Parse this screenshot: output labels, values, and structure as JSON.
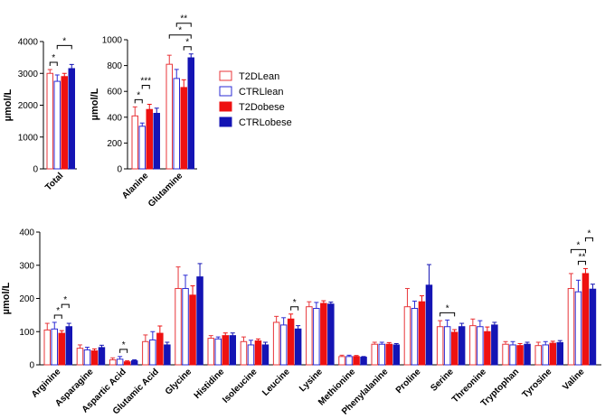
{
  "legend": {
    "position": "right",
    "items": [
      {
        "name": "T2DLean",
        "color": "#e8363a",
        "filled": false
      },
      {
        "name": "CTRLlean",
        "color": "#2b2bd4",
        "filled": false
      },
      {
        "name": "T2Dobese",
        "color": "#ee1111",
        "filled": true
      },
      {
        "name": "CTRLobese",
        "color": "#1414b4",
        "filled": true
      }
    ]
  },
  "chart_data": [
    {
      "type": "bar",
      "panel": "total",
      "ylabel": "µmol/L",
      "ylim": [
        0,
        4000
      ],
      "yticks": [
        0,
        1000,
        2000,
        3000,
        4000
      ],
      "grid": false,
      "categories": [
        "Total"
      ],
      "series": [
        {
          "name": "T2DLean",
          "values": [
            3000
          ],
          "errors": [
            120
          ]
        },
        {
          "name": "CTRLlean",
          "values": [
            2750
          ],
          "errors": [
            200
          ]
        },
        {
          "name": "T2Dobese",
          "values": [
            2900
          ],
          "errors": [
            100
          ]
        },
        {
          "name": "CTRLobese",
          "values": [
            3150
          ],
          "errors": [
            130
          ]
        }
      ],
      "significance": [
        {
          "category": "Total",
          "from": 0,
          "to": 1,
          "label": "*"
        },
        {
          "category": "Total",
          "from": 1,
          "to": 3,
          "label": "*"
        }
      ]
    },
    {
      "type": "bar",
      "panel": "alanine-glutamine",
      "ylabel": "µmol/L",
      "ylim": [
        0,
        1000
      ],
      "yticks": [
        0,
        200,
        400,
        600,
        800,
        1000
      ],
      "grid": false,
      "categories": [
        "Alanine",
        "Glutamine"
      ],
      "series": [
        {
          "name": "T2DLean",
          "values": [
            410,
            810
          ],
          "errors": [
            70,
            70
          ]
        },
        {
          "name": "CTRLlean",
          "values": [
            330,
            700
          ],
          "errors": [
            25,
            70
          ]
        },
        {
          "name": "T2Dobese",
          "values": [
            460,
            630
          ],
          "errors": [
            40,
            60
          ]
        },
        {
          "name": "CTRLobese",
          "values": [
            430,
            860
          ],
          "errors": [
            40,
            30
          ]
        }
      ],
      "significance": [
        {
          "category": "Alanine",
          "from": 0,
          "to": 1,
          "label": "*"
        },
        {
          "category": "Alanine",
          "from": 1,
          "to": 2,
          "label": "***"
        },
        {
          "category": "Glutamine",
          "from": 2,
          "to": 3,
          "label": "*"
        },
        {
          "category": "Glutamine",
          "from": 0,
          "to": 3,
          "label": "*"
        },
        {
          "category": "Glutamine",
          "from": 1,
          "to": 3,
          "label": "**"
        }
      ]
    },
    {
      "type": "bar",
      "panel": "amino-acids",
      "ylabel": "µmol/L",
      "ylim": [
        0,
        400
      ],
      "yticks": [
        0,
        100,
        200,
        300,
        400
      ],
      "grid": false,
      "categories": [
        "Arginine",
        "Asparagine",
        "Aspartic Acid",
        "Glutamic Acid",
        "Glycine",
        "Histidine",
        "Isoleucine",
        "Leucine",
        "Lysine",
        "Methionine",
        "Phenylalanine",
        "Proline",
        "Serine",
        "Threonine",
        "Tryptophan",
        "Tyrosine",
        "Valine"
      ],
      "series": [
        {
          "name": "T2DLean",
          "values": [
            105,
            50,
            15,
            70,
            230,
            80,
            70,
            128,
            175,
            25,
            62,
            175,
            115,
            118,
            62,
            58,
            230
          ],
          "errors": [
            20,
            10,
            6,
            20,
            65,
            8,
            14,
            18,
            15,
            4,
            6,
            55,
            18,
            20,
            8,
            10,
            45
          ]
        },
        {
          "name": "CTRLlean",
          "values": [
            108,
            45,
            17,
            75,
            230,
            78,
            60,
            120,
            170,
            25,
            62,
            170,
            115,
            115,
            60,
            60,
            220
          ],
          "errors": [
            20,
            8,
            8,
            25,
            40,
            6,
            14,
            22,
            18,
            4,
            6,
            22,
            20,
            18,
            10,
            10,
            35
          ]
        },
        {
          "name": "T2Dobese",
          "values": [
            95,
            42,
            9,
            95,
            210,
            88,
            72,
            138,
            185,
            25,
            62,
            190,
            98,
            100,
            58,
            65,
            275
          ],
          "errors": [
            8,
            6,
            3,
            22,
            28,
            8,
            6,
            15,
            8,
            3,
            5,
            18,
            8,
            14,
            6,
            6,
            15
          ]
        },
        {
          "name": "CTRLobese",
          "values": [
            115,
            52,
            12,
            60,
            265,
            88,
            60,
            108,
            183,
            23,
            60,
            240,
            115,
            120,
            62,
            67,
            228
          ],
          "errors": [
            10,
            7,
            3,
            8,
            40,
            8,
            8,
            10,
            6,
            2,
            4,
            62,
            10,
            8,
            6,
            6,
            15
          ]
        }
      ],
      "significance": [
        {
          "category": "Arginine",
          "from": 1,
          "to": 2,
          "label": "*"
        },
        {
          "category": "Arginine",
          "from": 2,
          "to": 3,
          "label": "*"
        },
        {
          "category": "Aspartic Acid",
          "from": 1,
          "to": 2,
          "label": "*"
        },
        {
          "category": "Leucine",
          "from": 2,
          "to": 3,
          "label": "*"
        },
        {
          "category": "Serine",
          "from": 0,
          "to": 2,
          "label": "*"
        },
        {
          "category": "Valine",
          "from": 1,
          "to": 2,
          "label": "**"
        },
        {
          "category": "Valine",
          "from": 0,
          "to": 2,
          "label": "*"
        },
        {
          "category": "Valine",
          "from": 2,
          "to": 3,
          "label": "*"
        }
      ]
    }
  ]
}
